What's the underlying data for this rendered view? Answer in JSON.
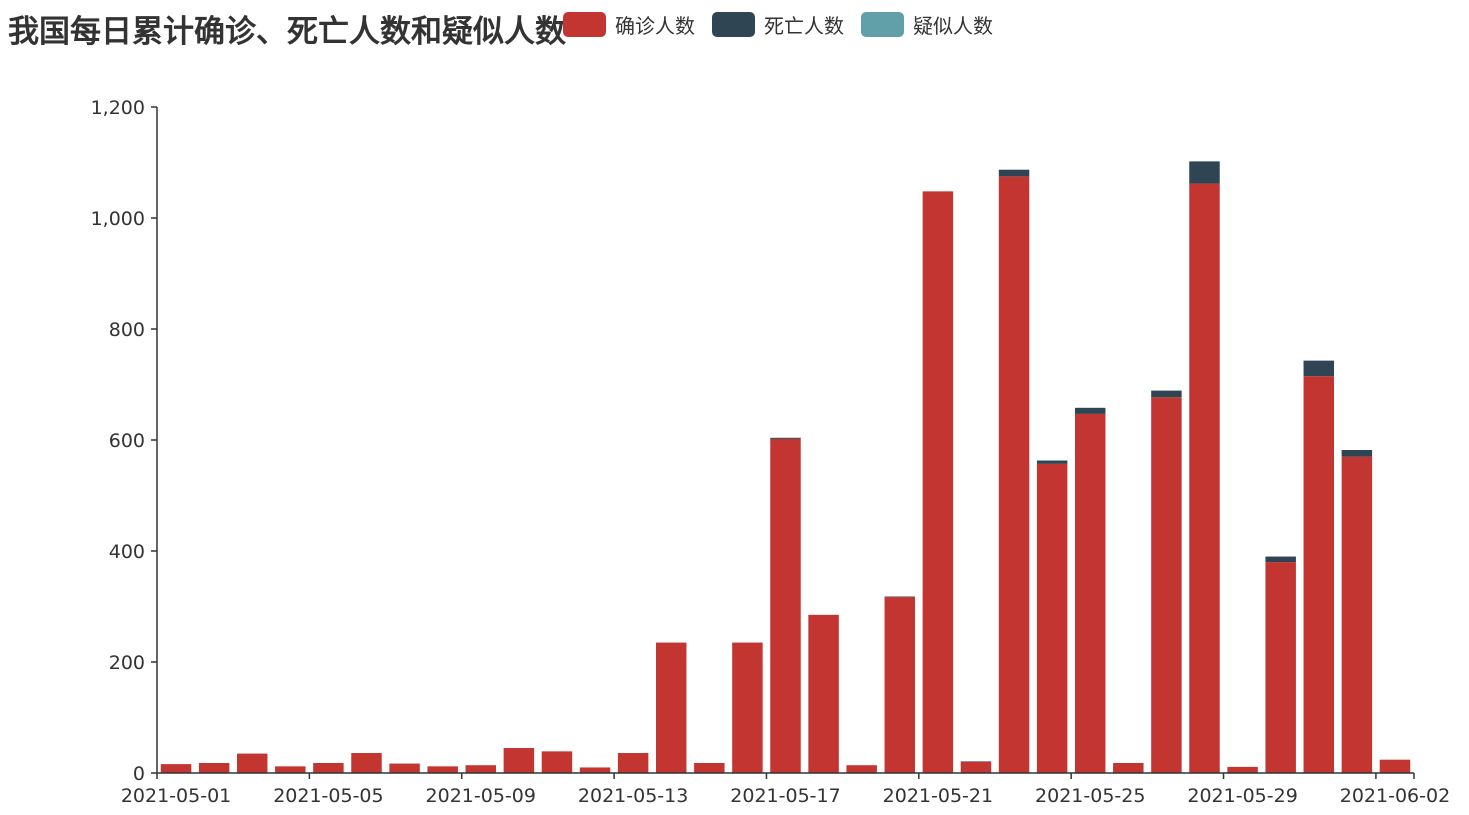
{
  "chart_data": {
    "type": "bar",
    "stacked": true,
    "title": "我国每日累计确诊、死亡人数和疑似人数",
    "xlabel": "",
    "ylabel": "",
    "ylim": [
      0,
      1200
    ],
    "yticks": [
      "0",
      "200",
      "400",
      "600",
      "800",
      "1,000",
      "1,200"
    ],
    "ytick_values": [
      0,
      200,
      400,
      600,
      800,
      1000,
      1200
    ],
    "x_tick_labels": [
      "2021-05-01",
      "2021-05-05",
      "2021-05-09",
      "2021-05-13",
      "2021-05-17",
      "2021-05-21",
      "2021-05-25",
      "2021-05-29",
      "2021-06-02"
    ],
    "x_tick_indices": [
      0,
      4,
      8,
      12,
      16,
      20,
      24,
      28,
      32
    ],
    "categories": [
      "2021-05-01",
      "2021-05-02",
      "2021-05-03",
      "2021-05-04",
      "2021-05-05",
      "2021-05-06",
      "2021-05-07",
      "2021-05-08",
      "2021-05-09",
      "2021-05-10",
      "2021-05-11",
      "2021-05-12",
      "2021-05-13",
      "2021-05-14",
      "2021-05-15",
      "2021-05-16",
      "2021-05-17",
      "2021-05-18",
      "2021-05-19",
      "2021-05-20",
      "2021-05-21",
      "2021-05-22",
      "2021-05-23",
      "2021-05-24",
      "2021-05-25",
      "2021-05-26",
      "2021-05-27",
      "2021-05-28",
      "2021-05-29",
      "2021-05-30",
      "2021-05-31",
      "2021-06-01",
      "2021-06-02"
    ],
    "series": [
      {
        "name": "确诊人数",
        "color": "#c23531",
        "values": [
          16,
          18,
          35,
          12,
          18,
          36,
          17,
          12,
          14,
          45,
          39,
          10,
          36,
          235,
          18,
          235,
          602,
          285,
          14,
          317,
          1048,
          20,
          1075,
          557,
          647,
          18,
          677,
          1062,
          11,
          380,
          715,
          570,
          24
        ]
      },
      {
        "name": "死亡人数",
        "color": "#2f4554",
        "values": [
          0,
          0,
          0,
          0,
          0,
          0,
          0,
          0,
          0,
          0,
          0,
          0,
          0,
          0,
          0,
          0,
          2,
          0,
          0,
          1,
          0,
          1,
          12,
          6,
          11,
          0,
          12,
          40,
          0,
          10,
          28,
          12,
          0
        ]
      },
      {
        "name": "疑似人数",
        "color": "#61a0a8",
        "values": [
          0,
          0,
          0,
          0,
          0,
          0,
          0,
          0,
          0,
          0,
          0,
          0,
          0,
          0,
          0,
          0,
          0,
          0,
          0,
          0,
          0,
          0,
          0,
          0,
          0,
          0,
          0,
          0,
          0,
          0,
          0,
          0,
          0
        ]
      }
    ],
    "legend_position": "top",
    "grid": false
  }
}
